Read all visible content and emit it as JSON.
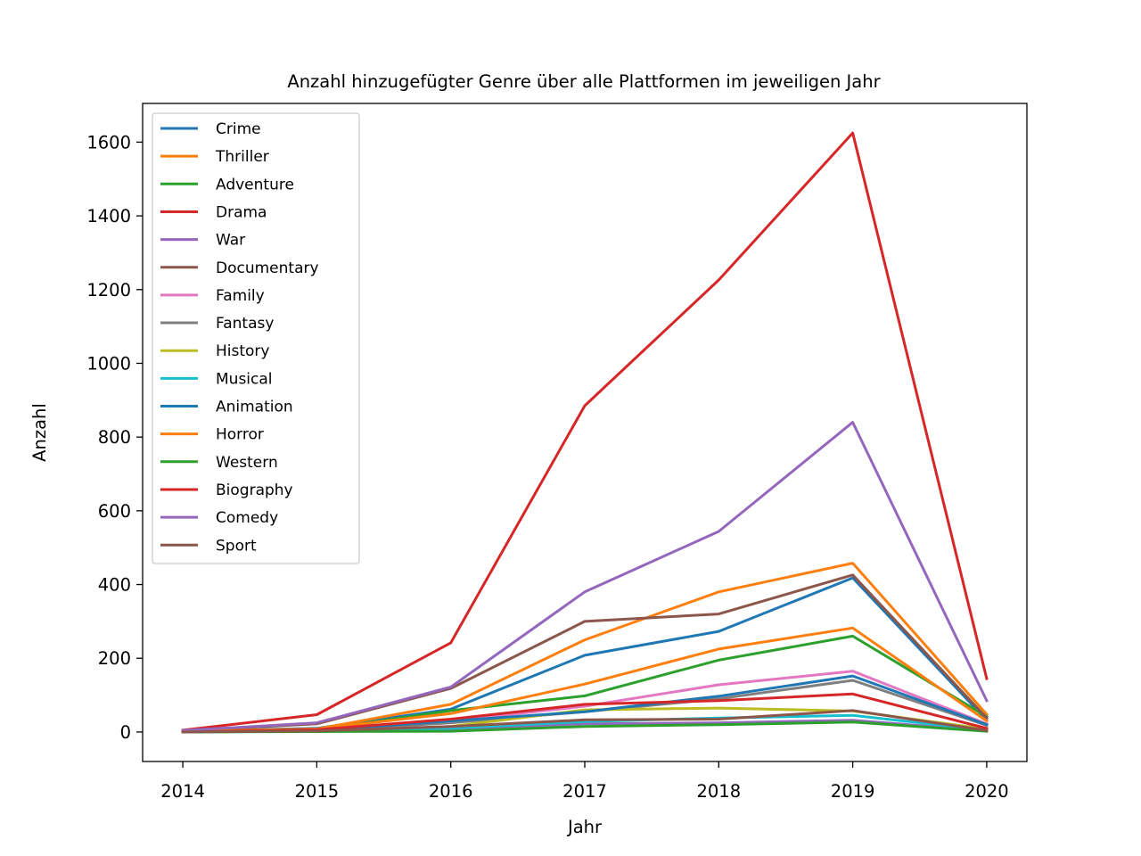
{
  "chart_data": {
    "type": "line",
    "title": "Anzahl hinzugefügter Genre über alle Plattformen im jeweiligen Jahr",
    "xlabel": "Jahr",
    "ylabel": "Anzahl",
    "x": [
      2014,
      2015,
      2016,
      2017,
      2018,
      2019,
      2020
    ],
    "xticks": [
      "2014",
      "2015",
      "2016",
      "2017",
      "2018",
      "2019",
      "2020"
    ],
    "yticks": [
      "0",
      "200",
      "400",
      "600",
      "800",
      "1000",
      "1200",
      "1400",
      "1600"
    ],
    "xlim": [
      2013.7,
      2020.3
    ],
    "ylim": [
      -80,
      1705
    ],
    "legend_position": "top-left",
    "grid": false,
    "series": [
      {
        "name": "Crime",
        "color": "#1f77b4",
        "values": [
          2,
          10,
          62,
          208,
          273,
          418,
          32
        ]
      },
      {
        "name": "Thriller",
        "color": "#ff7f0e",
        "values": [
          2,
          8,
          75,
          250,
          380,
          458,
          48
        ]
      },
      {
        "name": "Adventure",
        "color": "#2ca02c",
        "values": [
          1,
          5,
          58,
          98,
          195,
          260,
          42
        ]
      },
      {
        "name": "Drama",
        "color": "#d62728",
        "values": [
          5,
          47,
          242,
          885,
          1226,
          1625,
          145
        ]
      },
      {
        "name": "War",
        "color": "#9467bd",
        "values": [
          0,
          2,
          8,
          22,
          25,
          32,
          3
        ]
      },
      {
        "name": "Documentary",
        "color": "#8c564b",
        "values": [
          3,
          22,
          118,
          300,
          320,
          426,
          38
        ]
      },
      {
        "name": "Family",
        "color": "#e377c2",
        "values": [
          1,
          6,
          30,
          70,
          128,
          165,
          22
        ]
      },
      {
        "name": "Fantasy",
        "color": "#7f7f7f",
        "values": [
          0,
          3,
          25,
          55,
          90,
          140,
          18
        ]
      },
      {
        "name": "History",
        "color": "#bcbd22",
        "values": [
          0,
          2,
          15,
          60,
          65,
          57,
          8
        ]
      },
      {
        "name": "Musical",
        "color": "#17becf",
        "values": [
          0,
          2,
          10,
          28,
          38,
          45,
          5
        ]
      },
      {
        "name": "Animation",
        "color": "#1f77b4",
        "values": [
          0,
          4,
          30,
          55,
          97,
          152,
          20
        ]
      },
      {
        "name": "Horror",
        "color": "#ff7f0e",
        "values": [
          1,
          8,
          50,
          130,
          225,
          282,
          30
        ]
      },
      {
        "name": "Western",
        "color": "#2ca02c",
        "values": [
          0,
          1,
          2,
          15,
          20,
          27,
          2
        ]
      },
      {
        "name": "Biography",
        "color": "#d62728",
        "values": [
          0,
          6,
          35,
          75,
          85,
          103,
          10
        ]
      },
      {
        "name": "Comedy",
        "color": "#9467bd",
        "values": [
          4,
          25,
          122,
          380,
          544,
          840,
          85
        ]
      },
      {
        "name": "Sport",
        "color": "#8c564b",
        "values": [
          0,
          3,
          15,
          33,
          35,
          58,
          4
        ]
      }
    ]
  }
}
